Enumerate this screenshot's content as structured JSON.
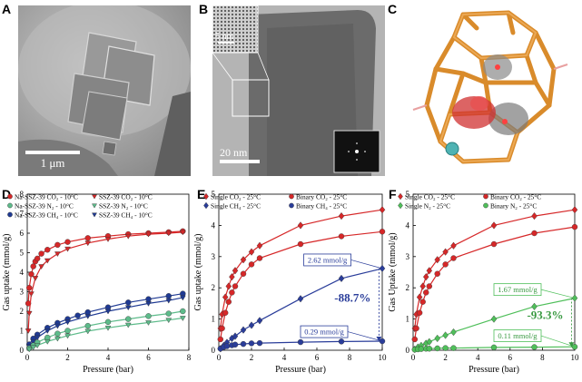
{
  "panels": {
    "a": {
      "label": "A",
      "scale_bar": "1 μm"
    },
    "b": {
      "label": "B",
      "inset_scale": "5 nm",
      "scale_bar": "20 nm"
    },
    "c": {
      "label": "C"
    },
    "d": {
      "label": "D"
    },
    "e": {
      "label": "E"
    },
    "f": {
      "label": "F"
    }
  },
  "chart_data": [
    {
      "id": "d",
      "type": "line",
      "xlabel": "Pressure (bar)",
      "ylabel": "Gas uptake (mmol/g)",
      "xlim": [
        0,
        8
      ],
      "ylim": [
        0,
        8
      ],
      "xticks": [
        0,
        2,
        4,
        6,
        8
      ],
      "yticks": [
        0,
        1,
        2,
        3,
        4,
        5,
        6,
        7,
        8
      ],
      "legend": [
        {
          "text": "Na-SSZ-39 CO₂ - 10°C",
          "color": "#d62728",
          "marker": "circle"
        },
        {
          "text": "SSZ-39 CO₂ - 10°C",
          "color": "#d62728",
          "marker": "tri-down"
        },
        {
          "text": "Na-SSZ-39 N₂ - 10°C",
          "color": "#5dbb8a",
          "marker": "circle"
        },
        {
          "text": "SSZ-39 N₂ - 10°C",
          "color": "#5dbb8a",
          "marker": "tri-down"
        },
        {
          "text": "Na-SSZ-39 CH₄ - 10°C",
          "color": "#1f3a93",
          "marker": "circle"
        },
        {
          "text": "SSZ-39 CH₄ - 10°C",
          "color": "#1f3a93",
          "marker": "tri-down"
        }
      ],
      "series": [
        {
          "name": "Na-SSZ-39 CO2 - 10°C",
          "color": "#d62728",
          "marker": "circle",
          "x": [
            0.05,
            0.1,
            0.2,
            0.3,
            0.4,
            0.5,
            0.7,
            1,
            1.5,
            2,
            3,
            4,
            5,
            6,
            7,
            7.7
          ],
          "y": [
            2.4,
            3.2,
            3.9,
            4.3,
            4.55,
            4.7,
            4.95,
            5.15,
            5.4,
            5.55,
            5.75,
            5.85,
            5.95,
            6.0,
            6.05,
            6.1
          ]
        },
        {
          "name": "SSZ-39 CO2 - 10°C",
          "color": "#d62728",
          "marker": "tri-down",
          "x": [
            0.05,
            0.1,
            0.2,
            0.4,
            0.7,
            1,
            1.5,
            2,
            3,
            4,
            5,
            6,
            7,
            7.7
          ],
          "y": [
            1.0,
            1.9,
            2.9,
            3.7,
            4.3,
            4.6,
            4.95,
            5.2,
            5.5,
            5.7,
            5.85,
            5.95,
            6.0,
            6.05
          ]
        },
        {
          "name": "Na-SSZ-39 CH4 - 10°C",
          "color": "#1f3a93",
          "marker": "circle",
          "x": [
            0.1,
            0.3,
            0.5,
            1,
            1.5,
            2,
            2.5,
            3,
            4,
            5,
            6,
            7,
            7.7
          ],
          "y": [
            0.3,
            0.6,
            0.8,
            1.15,
            1.4,
            1.6,
            1.78,
            1.95,
            2.2,
            2.45,
            2.62,
            2.78,
            2.9
          ]
        },
        {
          "name": "SSZ-39 CH4 - 10°C",
          "color": "#1f3a93",
          "marker": "tri-down",
          "x": [
            0.1,
            0.3,
            0.5,
            1,
            1.5,
            2,
            3,
            4,
            5,
            6,
            7,
            7.7
          ],
          "y": [
            0.2,
            0.45,
            0.65,
            1.0,
            1.25,
            1.45,
            1.75,
            2.0,
            2.2,
            2.4,
            2.55,
            2.7
          ]
        },
        {
          "name": "Na-SSZ-39 N2 - 10°C",
          "color": "#5dbb8a",
          "marker": "circle",
          "x": [
            0.1,
            0.3,
            0.5,
            1,
            1.5,
            2,
            3,
            4,
            5,
            6,
            7,
            7.7
          ],
          "y": [
            0.1,
            0.25,
            0.4,
            0.65,
            0.85,
            1.0,
            1.25,
            1.45,
            1.6,
            1.75,
            1.88,
            2.0
          ]
        },
        {
          "name": "SSZ-39 N2 - 10°C",
          "color": "#5dbb8a",
          "marker": "tri-down",
          "x": [
            0.1,
            0.3,
            0.5,
            1,
            1.5,
            2,
            3,
            4,
            5,
            6,
            7,
            7.7
          ],
          "y": [
            0.05,
            0.15,
            0.25,
            0.45,
            0.6,
            0.75,
            0.98,
            1.15,
            1.3,
            1.42,
            1.55,
            1.65
          ]
        }
      ]
    },
    {
      "id": "e",
      "type": "line",
      "xlabel": "Pressure (bar)",
      "ylabel": "Gas uptake (mmol/g)",
      "xlim": [
        0,
        10
      ],
      "ylim": [
        0,
        5
      ],
      "xticks": [
        0,
        2,
        4,
        6,
        8,
        10
      ],
      "yticks": [
        0,
        1,
        2,
        3,
        4,
        5
      ],
      "legend": [
        {
          "text": "Single CO₂ - 25°C",
          "color": "#d62728",
          "marker": "diamond"
        },
        {
          "text": "Binary CO₂ - 25°C",
          "color": "#d62728",
          "marker": "circle"
        },
        {
          "text": "Single CH₄ - 25°C",
          "color": "#2a3d9a",
          "marker": "diamond"
        },
        {
          "text": "Binary CH₄ - 25°C",
          "color": "#2a3d9a",
          "marker": "circle"
        }
      ],
      "series": [
        {
          "name": "Single CO2 - 25°C",
          "color": "#d62728",
          "marker": "diamond",
          "x": [
            0.1,
            0.2,
            0.4,
            0.6,
            0.8,
            1,
            1.5,
            2,
            2.5,
            5,
            7.5,
            10
          ],
          "y": [
            0.7,
            1.15,
            1.7,
            2.05,
            2.35,
            2.55,
            2.9,
            3.15,
            3.35,
            4.0,
            4.3,
            4.5
          ]
        },
        {
          "name": "Binary CO2 - 25°C",
          "color": "#d62728",
          "marker": "circle",
          "x": [
            0.1,
            0.2,
            0.4,
            0.6,
            0.8,
            1,
            1.5,
            2,
            2.5,
            5,
            7.5,
            10
          ],
          "y": [
            0.35,
            0.7,
            1.2,
            1.55,
            1.85,
            2.05,
            2.45,
            2.75,
            2.95,
            3.4,
            3.65,
            3.8
          ]
        },
        {
          "name": "Single CH4 - 25°C",
          "color": "#2a3d9a",
          "marker": "diamond",
          "x": [
            0.1,
            0.3,
            0.5,
            0.8,
            1,
            1.5,
            2,
            2.5,
            5,
            7.5,
            10
          ],
          "y": [
            0.05,
            0.15,
            0.25,
            0.38,
            0.45,
            0.65,
            0.8,
            0.95,
            1.65,
            2.3,
            2.62
          ]
        },
        {
          "name": "Binary CH4 - 25°C",
          "color": "#2a3d9a",
          "marker": "circle",
          "x": [
            0.1,
            0.3,
            0.5,
            0.8,
            1,
            1.5,
            2,
            2.5,
            5,
            7.5,
            10
          ],
          "y": [
            0.05,
            0.1,
            0.13,
            0.16,
            0.18,
            0.2,
            0.22,
            0.23,
            0.26,
            0.28,
            0.29
          ]
        }
      ],
      "annotations": {
        "top_value": "2.62 mmol/g",
        "bottom_value": "0.29 mmol/g",
        "reduction": "-88.7%"
      }
    },
    {
      "id": "f",
      "type": "line",
      "xlabel": "Pressure (bar)",
      "ylabel": "Gas Uptake (mmol/g)",
      "xlim": [
        0,
        10
      ],
      "ylim": [
        0,
        5
      ],
      "xticks": [
        0,
        2,
        4,
        6,
        8,
        10
      ],
      "yticks": [
        0,
        1,
        2,
        3,
        4,
        5
      ],
      "legend": [
        {
          "text": "Single CO₂ - 25°C",
          "color": "#d62728",
          "marker": "diamond"
        },
        {
          "text": "Binary CO₂ - 25°C",
          "color": "#d62728",
          "marker": "circle"
        },
        {
          "text": "Single N₂ - 25°C",
          "color": "#4fbf5a",
          "marker": "diamond"
        },
        {
          "text": "Binary N₂ - 25°C",
          "color": "#4fbf5a",
          "marker": "circle"
        }
      ],
      "series": [
        {
          "name": "Single CO2 - 25°C",
          "color": "#d62728",
          "marker": "diamond",
          "x": [
            0.1,
            0.2,
            0.4,
            0.6,
            0.8,
            1,
            1.5,
            2,
            2.5,
            5,
            7.5,
            10
          ],
          "y": [
            0.7,
            1.15,
            1.7,
            2.05,
            2.35,
            2.55,
            2.9,
            3.15,
            3.35,
            4.0,
            4.3,
            4.5
          ]
        },
        {
          "name": "Binary CO2 - 25°C",
          "color": "#d62728",
          "marker": "circle",
          "x": [
            0.1,
            0.2,
            0.4,
            0.6,
            0.8,
            1,
            1.5,
            2,
            2.5,
            5,
            7.5,
            10
          ],
          "y": [
            0.35,
            0.7,
            1.2,
            1.55,
            1.85,
            2.05,
            2.45,
            2.75,
            2.95,
            3.4,
            3.75,
            3.95
          ]
        },
        {
          "name": "Single N2 - 25°C",
          "color": "#4fbf5a",
          "marker": "diamond",
          "x": [
            0.1,
            0.3,
            0.5,
            0.8,
            1,
            1.5,
            2,
            2.5,
            5,
            7.5,
            10
          ],
          "y": [
            0.03,
            0.1,
            0.15,
            0.22,
            0.27,
            0.38,
            0.48,
            0.58,
            1.0,
            1.4,
            1.67
          ]
        },
        {
          "name": "Binary N2 - 25°C",
          "color": "#4fbf5a",
          "marker": "circle",
          "x": [
            0.1,
            0.3,
            0.5,
            0.8,
            1,
            1.5,
            2,
            2.5,
            5,
            7.5,
            10
          ],
          "y": [
            0.02,
            0.03,
            0.04,
            0.05,
            0.05,
            0.06,
            0.07,
            0.07,
            0.09,
            0.1,
            0.11
          ]
        }
      ],
      "annotations": {
        "top_value": "1.67 mmol/g",
        "bottom_value": "0.11 mmol/g",
        "reduction": "-93.3%"
      }
    }
  ]
}
